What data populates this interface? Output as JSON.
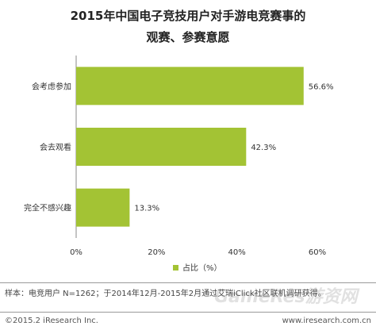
{
  "chart_data": {
    "type": "bar",
    "orientation": "horizontal",
    "title": "2015年中国电子竞技用户对手游电竞赛事的",
    "subtitle": "观赛、参赛意愿",
    "categories": [
      "会考虑参加",
      "会去观看",
      "完全不感兴趣"
    ],
    "values": [
      56.6,
      42.3,
      13.3
    ],
    "value_labels": [
      "56.6%",
      "42.3%",
      "13.3%"
    ],
    "xlim": [
      0,
      60
    ],
    "x_ticks": [
      0,
      20,
      40,
      60
    ],
    "x_tick_labels": [
      "0%",
      "20%",
      "40%",
      "60%"
    ],
    "legend": "占比（%）",
    "legend_position": "bottom",
    "grid": false,
    "bar_color": "#a3c334"
  },
  "footer": {
    "note": "样本：电竞用户 N=1262；于2014年12月-2015年2月通过艾瑞iClick社区联机调研获得。",
    "copyright": "©2015.2 iResearch Inc.",
    "site": "www.iresearch.com.cn",
    "watermark": "GameRes游资网"
  }
}
